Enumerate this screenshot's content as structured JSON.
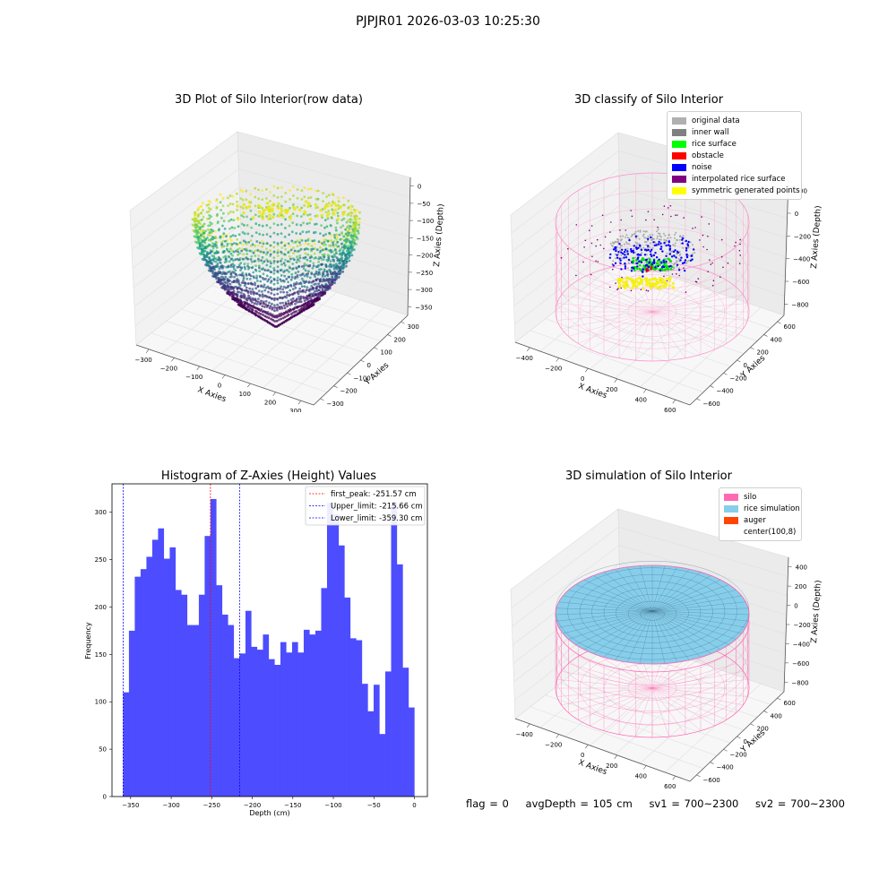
{
  "figure": {
    "suptitle": "PJPJR01 2026-03-03 10:25:30"
  },
  "colors": {
    "hist_bar": "#4d4dff",
    "first_peak_line": "#ff0000",
    "limit_line": "#0000ff",
    "silo": "#ff69b4",
    "rice_simulation": "#87ceeb",
    "auger": "#ff4500",
    "original_data": "#b0b0b0",
    "inner_wall": "#808080",
    "rice_surface": "#00ff00",
    "obstacle": "#ff0000",
    "noise": "#0000ff",
    "interpolated_rice_surface": "#800080",
    "symmetric_generated_points": "#ffff00"
  },
  "chart_data": [
    {
      "type": "scatter",
      "title": "3D Plot of Silo Interior(row data)",
      "xlabel": "X Axies",
      "ylabel": "Y Axies",
      "zlabel": "Z Axies (Depth)",
      "x_ticks": [
        "−300",
        "−200",
        "−100",
        "0",
        "100",
        "200",
        "300"
      ],
      "y_ticks": [
        "−300",
        "−200",
        "−100",
        "0",
        "100",
        "200",
        "300"
      ],
      "z_ticks": [
        "0",
        "−50",
        "−100",
        "−150",
        "−200",
        "−250",
        "−300",
        "−350"
      ],
      "xlim": [
        -350,
        350
      ],
      "ylim": [
        -350,
        350
      ],
      "zlim": [
        -370,
        10
      ],
      "colormap": "viridis"
    },
    {
      "type": "scatter",
      "title": "3D classify of Silo Interior",
      "xlabel": "X Axies",
      "ylabel": "Y Axies",
      "zlabel": "Z Axies (Depth)",
      "x_ticks": [
        "−400",
        "−200",
        "0",
        "200",
        "400",
        "600"
      ],
      "y_ticks": [
        "−600",
        "−400",
        "−200",
        "0",
        "200",
        "400",
        "600"
      ],
      "z_ticks": [
        "200",
        "0",
        "−200",
        "−400",
        "−600",
        "−800"
      ],
      "legend_position": "top-right",
      "legend": [
        "original data",
        "inner wall",
        "rice surface",
        "obstacle",
        "noise",
        "interpolated rice surface",
        "symmetric generated points"
      ]
    },
    {
      "type": "bar",
      "title": "Histogram of Z-Axies (Height) Values",
      "xlabel": "Depth (cm)",
      "ylabel": "Frequency",
      "xlim": [
        -373,
        16
      ],
      "ylim": [
        0,
        330
      ],
      "x_ticks": [
        -350,
        -300,
        -250,
        -200,
        -150,
        -100,
        -50,
        0
      ],
      "x_tick_labels": [
        "−350",
        "−300",
        "−250",
        "−200",
        "−150",
        "−100",
        "−50",
        "0"
      ],
      "y_ticks": [
        0,
        50,
        100,
        150,
        200,
        250,
        300
      ],
      "bin_start": -359.3,
      "bin_width": 7.186,
      "values": [
        110,
        175,
        232,
        240,
        253,
        271,
        283,
        251,
        263,
        218,
        213,
        181,
        181,
        213,
        275,
        314,
        223,
        192,
        181,
        146,
        151,
        196,
        158,
        155,
        171,
        145,
        139,
        163,
        152,
        163,
        152,
        176,
        171,
        175,
        220,
        310,
        298,
        265,
        210,
        167,
        165,
        119,
        90,
        118,
        66,
        132,
        310,
        245,
        136,
        94
      ],
      "vlines": [
        {
          "label": "first_peak: -251.57 cm",
          "x": -251.57,
          "color": "red"
        },
        {
          "label": "Upper_limit: -215.66 cm",
          "x": -215.66,
          "color": "blue"
        },
        {
          "label": "Lower_limit: -359.30 cm",
          "x": -359.3,
          "color": "blue"
        }
      ],
      "legend_position": "top-right"
    },
    {
      "type": "scatter",
      "title": "3D simulation of Silo Interior",
      "xlabel": "X Axies",
      "ylabel": "Y Axies",
      "zlabel": "Z Axies (Depth)",
      "x_ticks": [
        "−400",
        "−200",
        "0",
        "200",
        "400",
        "600"
      ],
      "y_ticks": [
        "−600",
        "−400",
        "−200",
        "0",
        "200",
        "400",
        "600"
      ],
      "z_ticks": [
        "400",
        "200",
        "0",
        "−200",
        "−400",
        "−600",
        "−800"
      ],
      "legend_position": "top-right",
      "legend": [
        "silo",
        "rice simulation",
        "auger",
        "center(100,8)"
      ]
    }
  ],
  "footer": {
    "flag": "flag = 0",
    "avg_depth": "avgDepth = 105 cm",
    "sv1": "sv1 = 700~2300",
    "sv2": "sv2 = 700~2300"
  }
}
